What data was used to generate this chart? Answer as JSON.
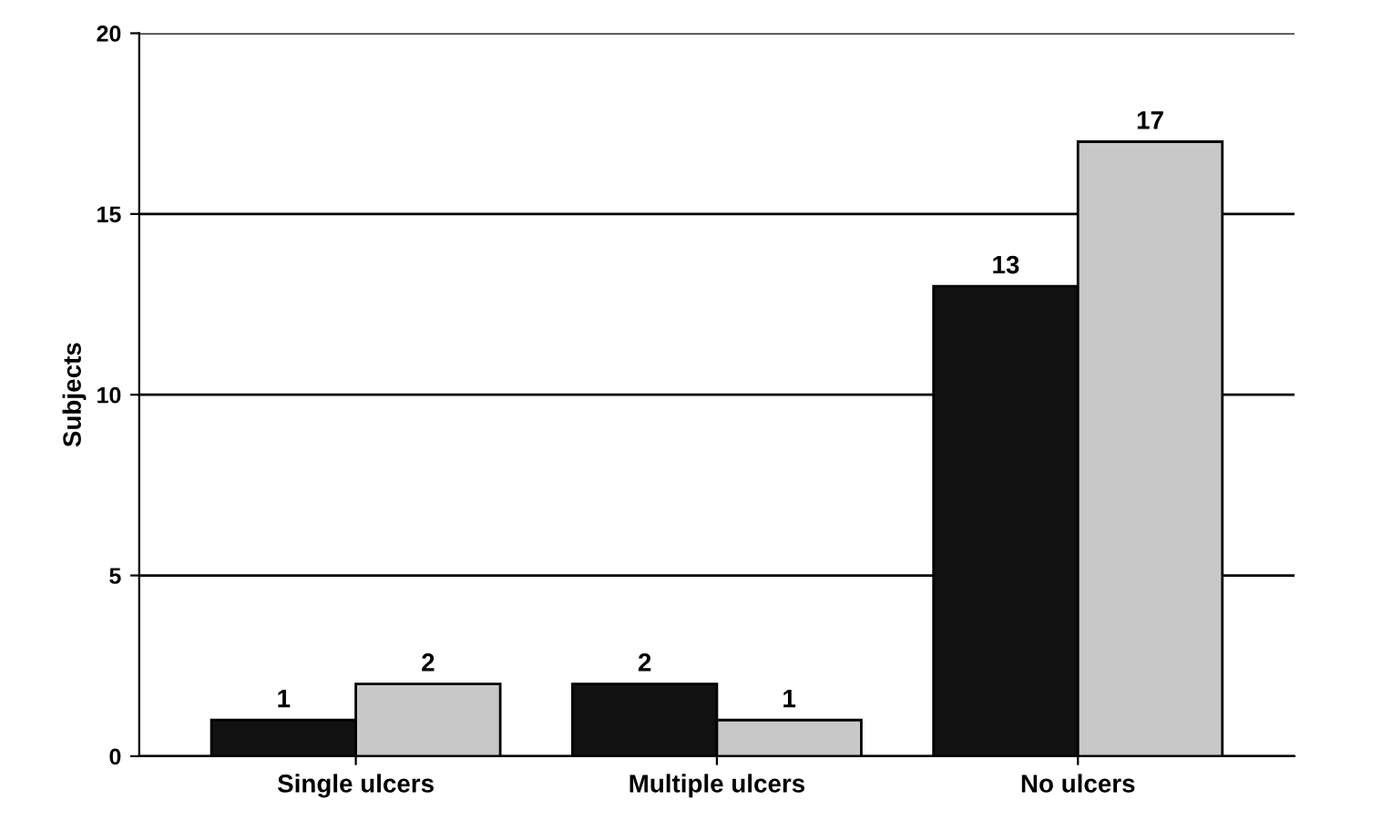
{
  "chart_data": {
    "type": "bar",
    "ylabel": "Subjects",
    "categories": [
      "Single ulcers",
      "Multiple ulcers",
      "No ulcers"
    ],
    "series": [
      {
        "color": "#111111",
        "values": [
          1,
          2,
          13
        ]
      },
      {
        "color": "#c8c8c8",
        "values": [
          2,
          1,
          17
        ]
      }
    ],
    "ylim": [
      0,
      20
    ],
    "yticks": [
      0,
      5,
      10,
      15,
      20
    ],
    "grid": "y",
    "data_labels": true
  }
}
